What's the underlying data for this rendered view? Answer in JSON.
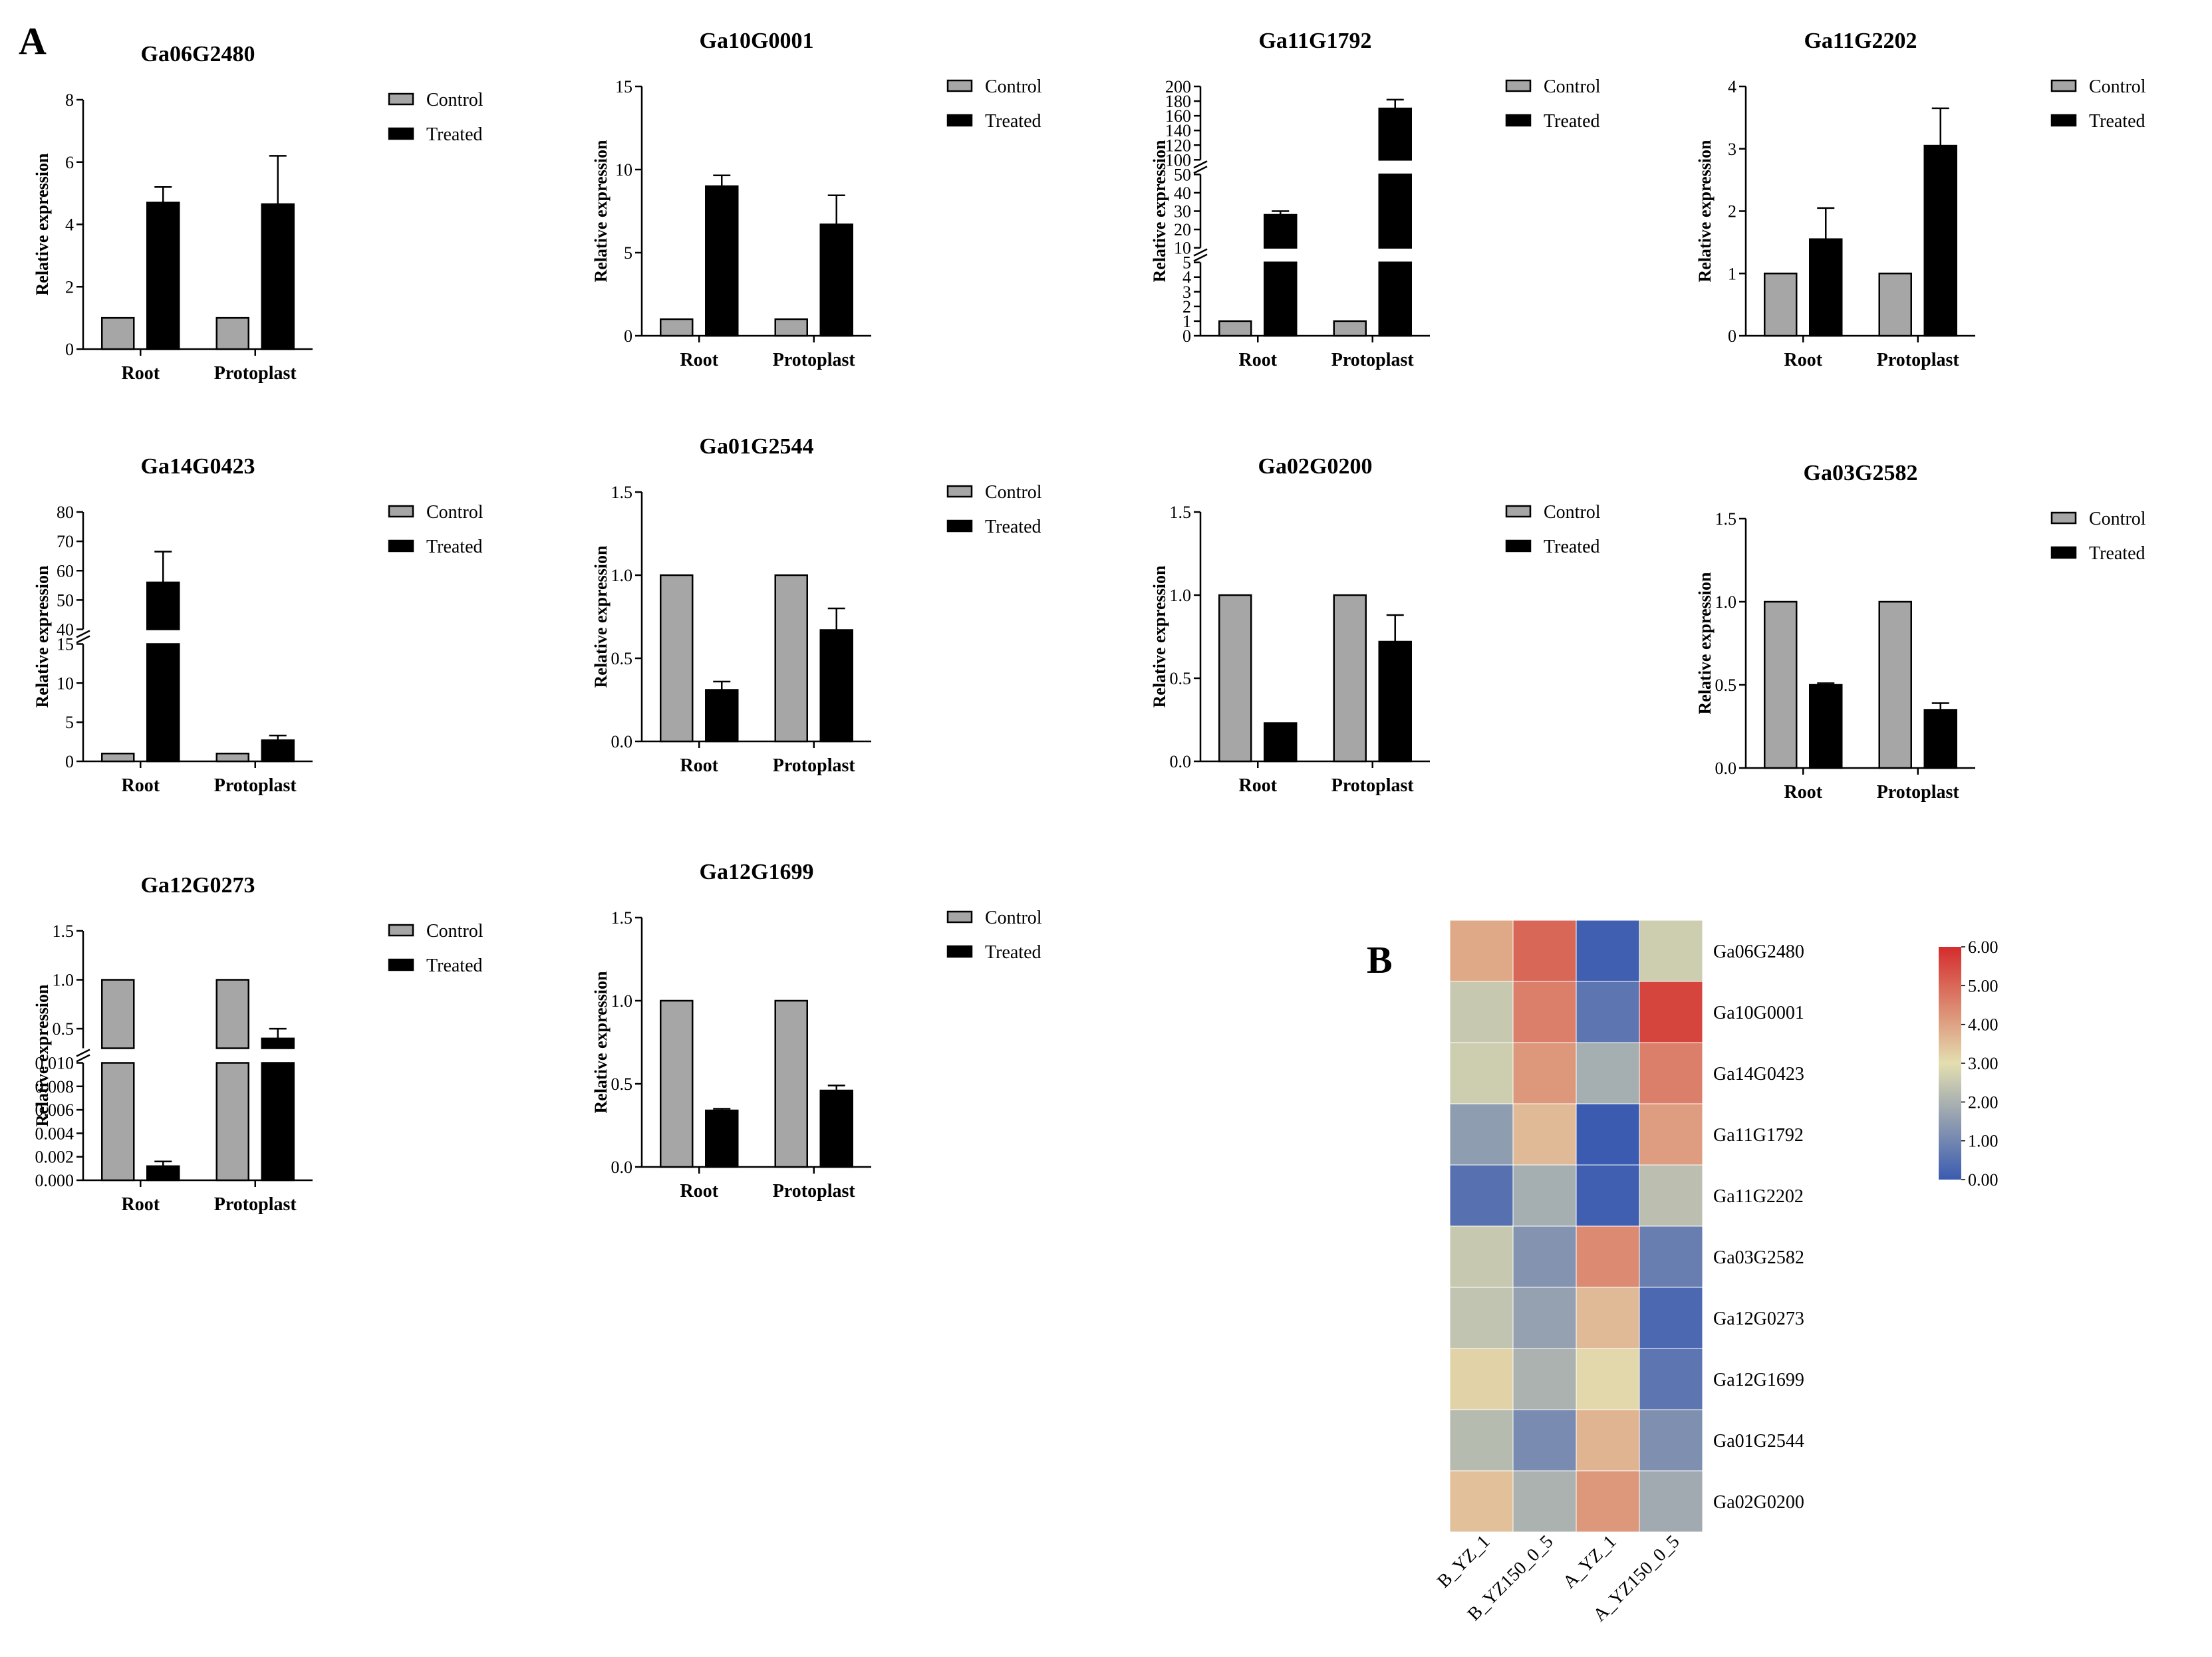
{
  "panel_labels": {
    "a": "A",
    "b": "B"
  },
  "legend": {
    "control": "Control",
    "treated": "Treated"
  },
  "colors": {
    "control": "#a6a6a6",
    "treated": "#000000",
    "axis": "#000000"
  },
  "chart_data": [
    {
      "type": "bar",
      "title": "Ga06G2480",
      "ylabel": "Relative expression",
      "categories": [
        "Root",
        "Protoplast"
      ],
      "series": [
        {
          "name": "Control",
          "values": [
            1,
            1
          ],
          "errors": [
            0,
            0
          ]
        },
        {
          "name": "Treated",
          "values": [
            4.7,
            4.65
          ],
          "errors": [
            0.5,
            1.55
          ]
        }
      ],
      "ylim": [
        0,
        8
      ],
      "yticks": [
        0,
        2,
        4,
        6,
        8
      ],
      "ytick_labels": [
        "0",
        "2",
        "4",
        "6",
        "8"
      ]
    },
    {
      "type": "bar",
      "title": "Ga10G0001",
      "ylabel": "Relative expression",
      "categories": [
        "Root",
        "Protoplast"
      ],
      "series": [
        {
          "name": "Control",
          "values": [
            1,
            1
          ],
          "errors": [
            0,
            0
          ]
        },
        {
          "name": "Treated",
          "values": [
            9,
            6.7
          ],
          "errors": [
            0.65,
            1.75
          ]
        }
      ],
      "ylim": [
        0,
        15
      ],
      "yticks": [
        0,
        5,
        10,
        15
      ],
      "ytick_labels": [
        "0",
        "5",
        "10",
        "15"
      ]
    },
    {
      "type": "bar",
      "title": "Ga11G1792",
      "ylabel": "Relative expression",
      "categories": [
        "Root",
        "Protoplast"
      ],
      "series": [
        {
          "name": "Control",
          "values": [
            1,
            1
          ],
          "errors": [
            0,
            0
          ]
        },
        {
          "name": "Treated",
          "values": [
            28,
            170
          ],
          "errors": [
            2,
            12
          ]
        }
      ],
      "ylim": [
        0,
        200
      ],
      "segments": [
        {
          "from": 0,
          "to": 5,
          "ticks": [
            0,
            1,
            2,
            3,
            4,
            5
          ],
          "tick_labels": [
            "0",
            "1",
            "2",
            "3",
            "4",
            "5"
          ]
        },
        {
          "from": 10,
          "to": 50,
          "ticks": [
            10,
            20,
            30,
            40,
            50
          ],
          "tick_labels": [
            "10",
            "20",
            "30",
            "40",
            "50"
          ]
        },
        {
          "from": 100,
          "to": 200,
          "ticks": [
            100,
            120,
            140,
            160,
            180,
            200
          ],
          "tick_labels": [
            "100",
            "120",
            "140",
            "160",
            "180",
            "200"
          ]
        }
      ]
    },
    {
      "type": "bar",
      "title": "Ga11G2202",
      "ylabel": "Relative expression",
      "categories": [
        "Root",
        "Protoplast"
      ],
      "series": [
        {
          "name": "Control",
          "values": [
            1,
            1
          ],
          "errors": [
            0,
            0
          ]
        },
        {
          "name": "Treated",
          "values": [
            1.55,
            3.05
          ],
          "errors": [
            0.5,
            0.6
          ]
        }
      ],
      "ylim": [
        0,
        4
      ],
      "yticks": [
        0,
        1,
        2,
        3,
        4
      ],
      "ytick_labels": [
        "0",
        "1",
        "2",
        "3",
        "4"
      ]
    },
    {
      "type": "bar",
      "title": "Ga14G0423",
      "ylabel": "Relative expression",
      "categories": [
        "Root",
        "Protoplast"
      ],
      "series": [
        {
          "name": "Control",
          "values": [
            1,
            1
          ],
          "errors": [
            0,
            0
          ]
        },
        {
          "name": "Treated",
          "values": [
            56,
            2.7
          ],
          "errors": [
            10.5,
            0.6
          ]
        }
      ],
      "ylim": [
        0,
        80
      ],
      "segments": [
        {
          "from": 0,
          "to": 15,
          "ticks": [
            0,
            5,
            10,
            15
          ],
          "tick_labels": [
            "0",
            "5",
            "10",
            "15"
          ]
        },
        {
          "from": 40,
          "to": 80,
          "ticks": [
            40,
            50,
            60,
            70,
            80
          ],
          "tick_labels": [
            "40",
            "50",
            "60",
            "70",
            "80"
          ]
        }
      ]
    },
    {
      "type": "bar",
      "title": "Ga01G2544",
      "ylabel": "Relative expression",
      "categories": [
        "Root",
        "Protoplast"
      ],
      "series": [
        {
          "name": "Control",
          "values": [
            1,
            1
          ],
          "errors": [
            0,
            0
          ]
        },
        {
          "name": "Treated",
          "values": [
            0.31,
            0.67
          ],
          "errors": [
            0.05,
            0.13
          ]
        }
      ],
      "ylim": [
        0,
        1.5
      ],
      "yticks": [
        0,
        0.5,
        1,
        1.5
      ],
      "ytick_labels": [
        "0.0",
        "0.5",
        "1.0",
        "1.5"
      ]
    },
    {
      "type": "bar",
      "title": "Ga02G0200",
      "ylabel": "Relative expression",
      "categories": [
        "Root",
        "Protoplast"
      ],
      "series": [
        {
          "name": "Control",
          "values": [
            1,
            1
          ],
          "errors": [
            0,
            0
          ]
        },
        {
          "name": "Treated",
          "values": [
            0.23,
            0.72
          ],
          "errors": [
            0,
            0.16
          ]
        }
      ],
      "ylim": [
        0,
        1.5
      ],
      "yticks": [
        0,
        0.5,
        1,
        1.5
      ],
      "ytick_labels": [
        "0.0",
        "0.5",
        "1.0",
        "1.5"
      ]
    },
    {
      "type": "bar",
      "title": "Ga03G2582",
      "ylabel": "Relative expression",
      "categories": [
        "Root",
        "Protoplast"
      ],
      "series": [
        {
          "name": "Control",
          "values": [
            1,
            1
          ],
          "errors": [
            0,
            0
          ]
        },
        {
          "name": "Treated",
          "values": [
            0.5,
            0.35
          ],
          "errors": [
            0.01,
            0.04
          ]
        }
      ],
      "ylim": [
        0,
        1.5
      ],
      "yticks": [
        0,
        0.5,
        1,
        1.5
      ],
      "ytick_labels": [
        "0.0",
        "0.5",
        "1.0",
        "1.5"
      ]
    },
    {
      "type": "bar",
      "title": "Ga12G0273",
      "ylabel": "Relative expression",
      "categories": [
        "Root",
        "Protoplast"
      ],
      "series": [
        {
          "name": "Control",
          "values": [
            1,
            1
          ],
          "errors": [
            0,
            0
          ]
        },
        {
          "name": "Treated",
          "values": [
            0.0012,
            0.4
          ],
          "errors": [
            0.0004,
            0.1
          ]
        }
      ],
      "ylim": [
        0,
        1.5
      ],
      "segments": [
        {
          "from": 0,
          "to": 0.01,
          "ticks": [
            0,
            0.002,
            0.004,
            0.006,
            0.008,
            0.01
          ],
          "tick_labels": [
            "0.000",
            "0.002",
            "0.004",
            "0.006",
            "0.008",
            "0.010"
          ]
        },
        {
          "from": 0.3,
          "to": 1.5,
          "ticks": [
            0.5,
            1,
            1.5
          ],
          "tick_labels": [
            "0.5",
            "1.0",
            "1.5"
          ]
        }
      ]
    },
    {
      "type": "bar",
      "title": "Ga12G1699",
      "ylabel": "Relative expression",
      "categories": [
        "Root",
        "Protoplast"
      ],
      "series": [
        {
          "name": "Control",
          "values": [
            1,
            1
          ],
          "errors": [
            0,
            0
          ]
        },
        {
          "name": "Treated",
          "values": [
            0.34,
            0.46
          ],
          "errors": [
            0.01,
            0.03
          ]
        }
      ],
      "ylim": [
        0,
        1.5
      ],
      "yticks": [
        0,
        0.5,
        1,
        1.5
      ],
      "ytick_labels": [
        "0.0",
        "0.5",
        "1.0",
        "1.5"
      ]
    },
    {
      "type": "heatmap",
      "title": "",
      "rows": [
        "Ga06G2480",
        "Ga10G0001",
        "Ga14G0423",
        "Ga11G1792",
        "Ga11G2202",
        "Ga03G2582",
        "Ga12G0273",
        "Ga12G1699",
        "Ga01G2544",
        "Ga02G0200"
      ],
      "columns": [
        "B_YZ_1",
        "B_YZ150_0_5",
        "A_YZ_1",
        "A_YZ150_0_5"
      ],
      "values": [
        [
          3.9,
          5.0,
          0.1,
          2.6
        ],
        [
          2.5,
          4.6,
          0.6,
          5.6
        ],
        [
          2.6,
          4.2,
          1.9,
          4.6
        ],
        [
          1.5,
          3.6,
          0.0,
          4.1
        ],
        [
          0.5,
          1.9,
          0.1,
          2.3
        ],
        [
          2.5,
          1.3,
          4.4,
          0.8
        ],
        [
          2.4,
          1.6,
          3.6,
          0.3
        ],
        [
          3.2,
          2.0,
          3.1,
          0.6
        ],
        [
          2.2,
          1.1,
          3.7,
          1.2
        ],
        [
          3.5,
          2.0,
          4.2,
          1.8
        ]
      ],
      "colorbar": {
        "min": 0,
        "max": 6,
        "ticks": [
          0,
          1,
          2,
          3,
          4,
          5,
          6
        ],
        "tick_labels": [
          "0.00",
          "1.00",
          "2.00",
          "3.00",
          "4.00",
          "5.00",
          "6.00"
        ],
        "colors": [
          "#3b5bb0",
          "#e3deb0",
          "#d42c2c"
        ]
      }
    }
  ]
}
